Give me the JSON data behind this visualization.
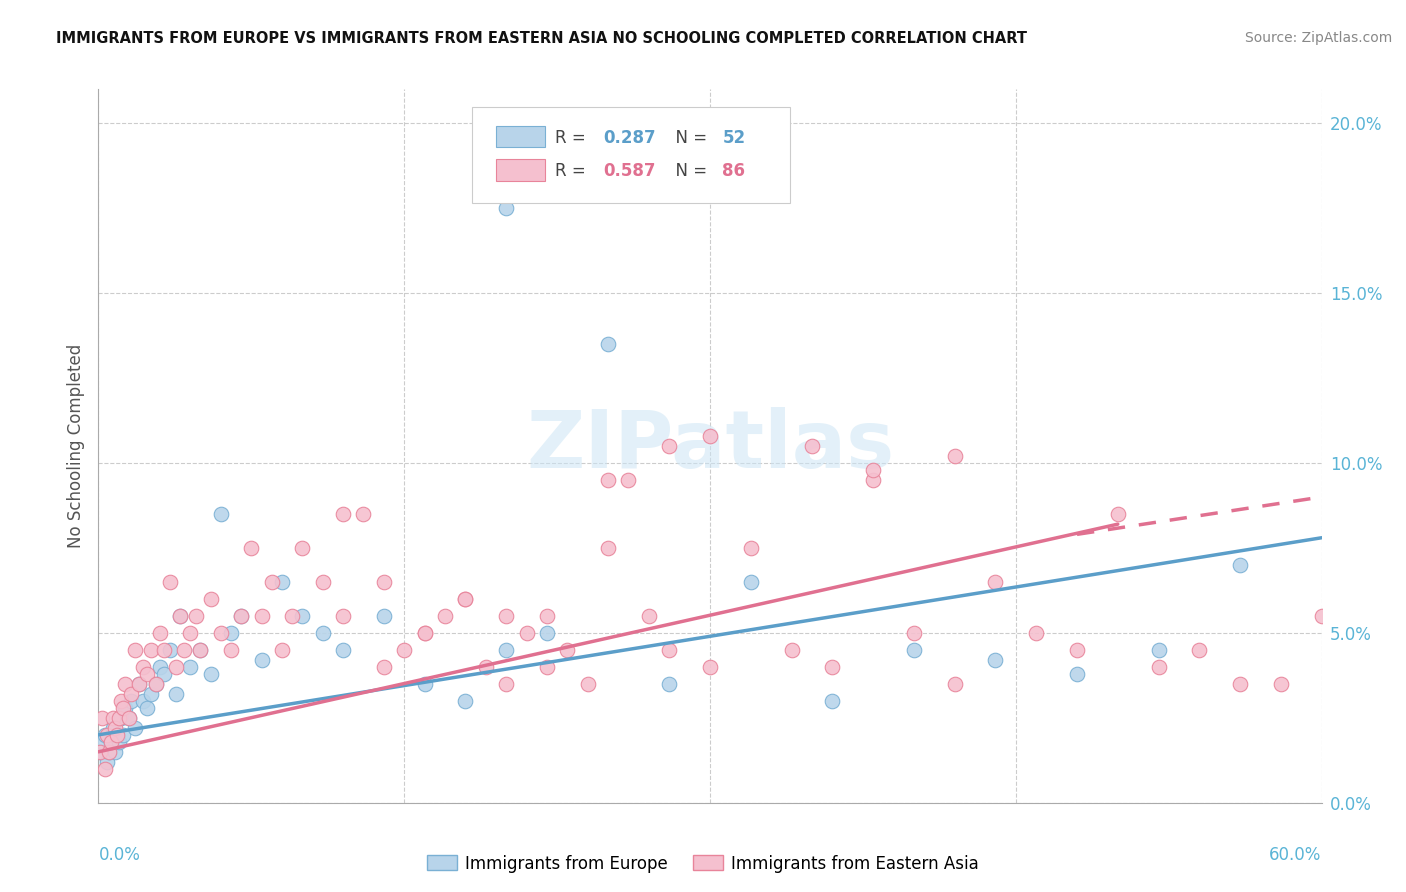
{
  "title": "IMMIGRANTS FROM EUROPE VS IMMIGRANTS FROM EASTERN ASIA NO SCHOOLING COMPLETED CORRELATION CHART",
  "source": "Source: ZipAtlas.com",
  "ylabel": "No Schooling Completed",
  "R_europe": 0.287,
  "N_europe": 52,
  "R_asia": 0.587,
  "N_asia": 86,
  "color_europe_fill": "#b8d4ea",
  "color_europe_edge": "#7ab0d4",
  "color_europe_line": "#5b9ec9",
  "color_asia_fill": "#f5c0cf",
  "color_asia_edge": "#e8849a",
  "color_asia_line": "#e07090",
  "color_right_axis": "#5ab4d6",
  "color_bottom_axis": "#5ab4d6",
  "color_grid": "#cccccc",
  "color_watermark": "#cce5f5",
  "watermark_text": "ZIPatlas",
  "grid_x": [
    0,
    15,
    30,
    45,
    60
  ],
  "grid_y": [
    0,
    5,
    10,
    15,
    20
  ],
  "xlim": [
    0,
    60
  ],
  "ylim": [
    0,
    21
  ],
  "ytick_labels": [
    "0.0%",
    "5.0%",
    "10.0%",
    "15.0%",
    "20.0%"
  ],
  "ytick_vals": [
    0,
    5,
    10,
    15,
    20
  ],
  "europe_x": [
    0.1,
    0.2,
    0.3,
    0.4,
    0.5,
    0.6,
    0.7,
    0.8,
    0.9,
    1.0,
    1.1,
    1.2,
    1.3,
    1.5,
    1.6,
    1.8,
    2.0,
    2.2,
    2.4,
    2.6,
    2.8,
    3.0,
    3.2,
    3.5,
    3.8,
    4.0,
    4.5,
    5.0,
    5.5,
    6.0,
    6.5,
    7.0,
    8.0,
    9.0,
    10.0,
    11.0,
    12.0,
    14.0,
    16.0,
    18.0,
    20.0,
    22.0,
    25.0,
    28.0,
    32.0,
    36.0,
    40.0,
    44.0,
    48.0,
    52.0,
    56.0,
    20.0
  ],
  "europe_y": [
    1.5,
    1.8,
    2.0,
    1.2,
    1.5,
    1.8,
    2.2,
    1.5,
    2.0,
    1.8,
    2.5,
    2.0,
    2.8,
    2.5,
    3.0,
    2.2,
    3.5,
    3.0,
    2.8,
    3.2,
    3.5,
    4.0,
    3.8,
    4.5,
    3.2,
    5.5,
    4.0,
    4.5,
    3.8,
    8.5,
    5.0,
    5.5,
    4.2,
    6.5,
    5.5,
    5.0,
    4.5,
    5.5,
    3.5,
    3.0,
    4.5,
    5.0,
    13.5,
    3.5,
    6.5,
    3.0,
    4.5,
    4.2,
    3.8,
    4.5,
    7.0,
    17.5
  ],
  "asia_x": [
    0.1,
    0.2,
    0.3,
    0.4,
    0.5,
    0.6,
    0.7,
    0.8,
    0.9,
    1.0,
    1.1,
    1.2,
    1.3,
    1.5,
    1.6,
    1.8,
    2.0,
    2.2,
    2.4,
    2.6,
    2.8,
    3.0,
    3.2,
    3.5,
    3.8,
    4.0,
    4.2,
    4.5,
    4.8,
    5.0,
    5.5,
    6.0,
    6.5,
    7.0,
    7.5,
    8.0,
    8.5,
    9.0,
    9.5,
    10.0,
    11.0,
    12.0,
    13.0,
    14.0,
    15.0,
    16.0,
    17.0,
    18.0,
    19.0,
    20.0,
    21.0,
    22.0,
    23.0,
    24.0,
    25.0,
    26.0,
    27.0,
    28.0,
    30.0,
    32.0,
    34.0,
    36.0,
    38.0,
    40.0,
    42.0,
    44.0,
    46.0,
    48.0,
    50.0,
    52.0,
    54.0,
    56.0,
    58.0,
    60.0,
    35.0,
    38.0,
    42.0,
    30.0,
    25.0,
    28.0,
    20.0,
    22.0,
    16.0,
    18.0,
    14.0,
    12.0
  ],
  "asia_y": [
    1.5,
    2.5,
    1.0,
    2.0,
    1.5,
    1.8,
    2.5,
    2.2,
    2.0,
    2.5,
    3.0,
    2.8,
    3.5,
    2.5,
    3.2,
    4.5,
    3.5,
    4.0,
    3.8,
    4.5,
    3.5,
    5.0,
    4.5,
    6.5,
    4.0,
    5.5,
    4.5,
    5.0,
    5.5,
    4.5,
    6.0,
    5.0,
    4.5,
    5.5,
    7.5,
    5.5,
    6.5,
    4.5,
    5.5,
    7.5,
    6.5,
    8.5,
    8.5,
    6.5,
    4.5,
    5.0,
    5.5,
    6.0,
    4.0,
    5.5,
    5.0,
    5.5,
    4.5,
    3.5,
    7.5,
    9.5,
    5.5,
    4.5,
    4.0,
    7.5,
    4.5,
    4.0,
    9.5,
    5.0,
    3.5,
    6.5,
    5.0,
    4.5,
    8.5,
    4.0,
    4.5,
    3.5,
    3.5,
    5.5,
    10.5,
    9.8,
    10.2,
    10.8,
    9.5,
    10.5,
    3.5,
    4.0,
    5.0,
    6.0,
    4.0,
    5.5
  ],
  "eu_reg_x0": 0,
  "eu_reg_x1": 60,
  "eu_reg_y0": 2.0,
  "eu_reg_y1": 7.8,
  "asia_reg_x0": 0,
  "asia_reg_x1": 50,
  "asia_reg_y0": 1.5,
  "asia_reg_y1": 8.2,
  "asia_dash_x0": 48,
  "asia_dash_x1": 60,
  "asia_dash_y0": 7.9,
  "asia_dash_y1": 9.0
}
